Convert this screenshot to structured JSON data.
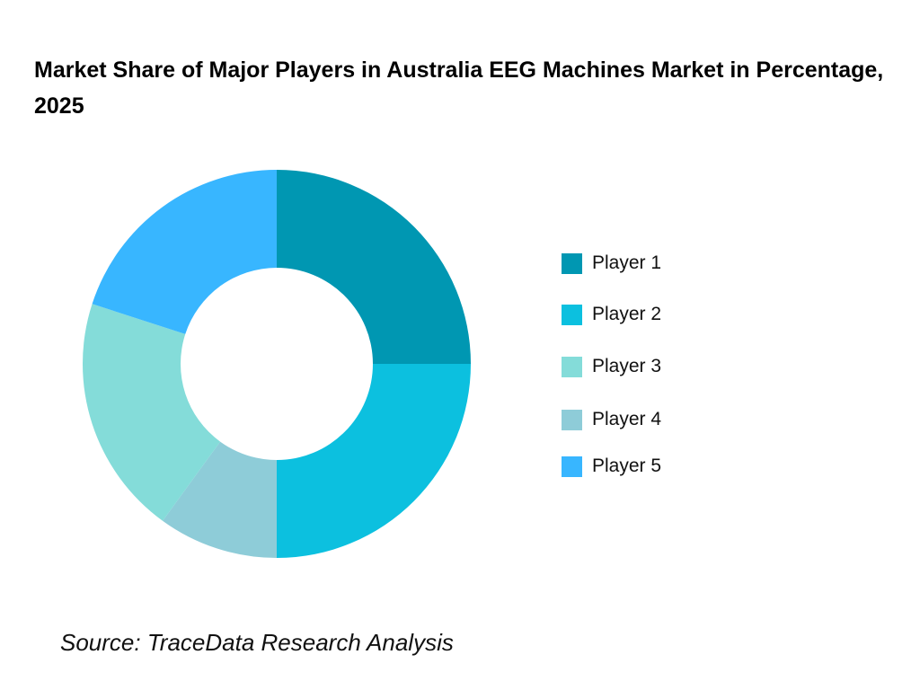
{
  "chart_data": {
    "type": "pie",
    "variant": "donut",
    "title": "Market Share of Major Players in Australia EEG Machines Market in Percentage, 2025",
    "categories": [
      "Player 1",
      "Player 2",
      "Player 3",
      "Player 4",
      "Player 5"
    ],
    "values": [
      25,
      25,
      20,
      10,
      20
    ],
    "unit": "%",
    "colors": [
      "#0097B2",
      "#0CC0DF",
      "#84DCD9",
      "#8ECCD8",
      "#38B6FF"
    ],
    "legend_position": "right",
    "slice_order_note": "clockwise from top: Player 1, Player 2, Player 4, Player 3, Player 5"
  },
  "source": "Source: TraceData Research Analysis"
}
